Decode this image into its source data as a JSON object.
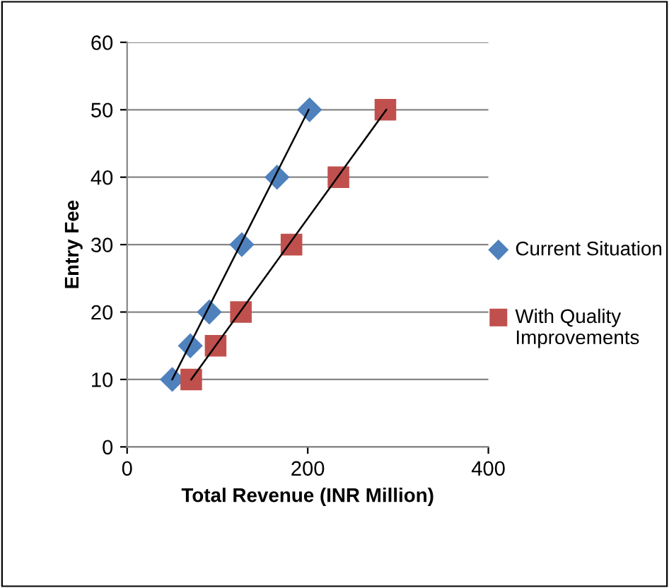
{
  "chart_data": {
    "type": "scatter",
    "xlabel": "Total Revenue (INR Million)",
    "ylabel": "Entry Fee",
    "xlim": [
      0,
      400
    ],
    "xticks": [
      0,
      200,
      400
    ],
    "ylim": [
      0,
      60
    ],
    "yticks": [
      0,
      10,
      20,
      30,
      40,
      50,
      60
    ],
    "grid": "y",
    "legend": "right",
    "series": [
      {
        "name": "Current Situation",
        "color": "#4f81bd",
        "marker": "diamond",
        "x": [
          50,
          70,
          91,
          127,
          166,
          202
        ],
        "values": [
          10,
          15,
          20,
          30,
          40,
          50
        ]
      },
      {
        "name": "With Quality Improvements",
        "color": "#c0504d",
        "marker": "square",
        "x": [
          71,
          98,
          126,
          182,
          234,
          286
        ],
        "values": [
          10,
          15,
          20,
          30,
          40,
          50
        ]
      },
      {
        "type": "line",
        "color": "#000000",
        "marker": "none",
        "x": [
          50,
          201
        ],
        "values": [
          10,
          50
        ]
      },
      {
        "type": "line",
        "color": "#000000",
        "marker": "none",
        "x": [
          71,
          287
        ],
        "values": [
          10,
          50
        ]
      }
    ]
  }
}
